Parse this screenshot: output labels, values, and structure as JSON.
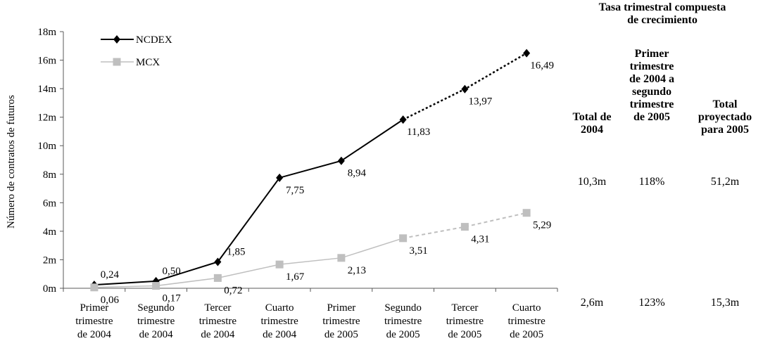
{
  "chart_data": {
    "type": "line",
    "ylabel": "Número de contratos de futuros",
    "ylim": [
      0,
      18
    ],
    "yticks": [
      "0m",
      "2m",
      "4m",
      "6m",
      "8m",
      "10m",
      "12m",
      "14m",
      "16m",
      "18m"
    ],
    "categories": [
      [
        "Primer",
        "trimestre",
        "de 2004"
      ],
      [
        "Segundo",
        "trimestre",
        "de 2004"
      ],
      [
        "Tercer",
        "trimestre",
        "de 2004"
      ],
      [
        "Cuarto",
        "trimestre",
        "de 2004"
      ],
      [
        "Primer",
        "trimestre",
        "de 2005"
      ],
      [
        "Segundo",
        "trimestre",
        "de 2005"
      ],
      [
        "Tercer",
        "trimestre",
        "de 2005"
      ],
      [
        "Cuarto",
        "trimestre",
        "de 2005"
      ]
    ],
    "legend_position": "top-left",
    "grid": false,
    "series": [
      {
        "name": "NCDEX",
        "color": "#000000",
        "marker": "diamond",
        "values": [
          0.24,
          0.5,
          1.85,
          7.75,
          8.94,
          11.83,
          13.97,
          16.49
        ],
        "labels": [
          "0,24",
          "0,50",
          "1,85",
          "7,75",
          "8,94",
          "11,83",
          "13,97",
          "16,49"
        ],
        "projected_from_index": 5
      },
      {
        "name": "MCX",
        "color": "#bfbfbf",
        "marker": "square",
        "values": [
          0.06,
          0.17,
          0.72,
          1.67,
          2.13,
          3.51,
          4.31,
          5.29
        ],
        "labels": [
          "0,06",
          "0,17",
          "0,72",
          "1,67",
          "2,13",
          "3,51",
          "4,31",
          "5,29"
        ],
        "projected_from_index": 5
      }
    ]
  },
  "side_table": {
    "title_line1": "Tasa trimestral compuesta",
    "title_line2": "de crecimiento",
    "col_total_2004": [
      "Total de",
      "2004"
    ],
    "col_growth": [
      "Primer",
      "trimestre",
      "de 2004 a",
      "segundo",
      "trimestre",
      "de 2005"
    ],
    "col_projected": [
      "Total",
      "proyectado",
      "para 2005"
    ],
    "ncdex_row": {
      "total_2004": "10,3m",
      "growth": "118%",
      "projected": "51,2m"
    },
    "mcx_row": {
      "total_2004": "2,6m",
      "growth": "123%",
      "projected": "15,3m"
    }
  }
}
